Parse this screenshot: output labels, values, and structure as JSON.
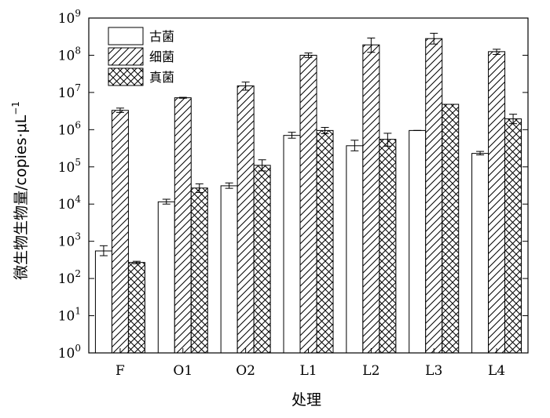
{
  "chart_data": {
    "type": "bar",
    "title": "",
    "xlabel": "处理",
    "ylabel": "微生物生物量/copies·μL",
    "ylabel_exponent": "−1",
    "y_scale": "log",
    "ylim": [
      1,
      1000000000
    ],
    "y_ticks": [
      {
        "base": "10",
        "exp": "0"
      },
      {
        "base": "10",
        "exp": "1"
      },
      {
        "base": "10",
        "exp": "2"
      },
      {
        "base": "10",
        "exp": "3"
      },
      {
        "base": "10",
        "exp": "4"
      },
      {
        "base": "10",
        "exp": "5"
      },
      {
        "base": "10",
        "exp": "6"
      },
      {
        "base": "10",
        "exp": "7"
      },
      {
        "base": "10",
        "exp": "8"
      },
      {
        "base": "10",
        "exp": "9"
      }
    ],
    "categories": [
      "F",
      "O1",
      "O2",
      "L1",
      "L2",
      "L3",
      "L4"
    ],
    "legend_position": "top-left",
    "grid": false,
    "series": [
      {
        "name": "古菌",
        "pattern": "blank",
        "values": [
          550,
          11500,
          31000,
          700000,
          370000,
          950000,
          230000
        ],
        "err_low": [
          410,
          10000,
          26500,
          590000,
          270000,
          950000,
          210000
        ],
        "err_high": [
          760,
          13500,
          37000,
          850000,
          520000,
          950000,
          260000
        ]
      },
      {
        "name": "细菌",
        "pattern": "diagonal-lines",
        "values": [
          3300000,
          7200000,
          15000000,
          100000000,
          190000000,
          280000000,
          125000000
        ],
        "err_low": [
          2900000,
          7000000,
          11500000,
          87000000,
          120000000,
          200000000,
          105000000
        ],
        "err_high": [
          3800000,
          7400000,
          19000000,
          115000000,
          290000000,
          390000000,
          145000000
        ]
      },
      {
        "name": "真菌",
        "pattern": "crosshatch",
        "values": [
          270,
          27000,
          110000,
          950000,
          550000,
          4800000,
          1950000
        ],
        "err_low": [
          250,
          20500,
          78000,
          780000,
          360000,
          4800000,
          1450000
        ],
        "err_high": [
          290,
          35000,
          155000,
          1150000,
          800000,
          4800000,
          2600000
        ]
      }
    ]
  }
}
